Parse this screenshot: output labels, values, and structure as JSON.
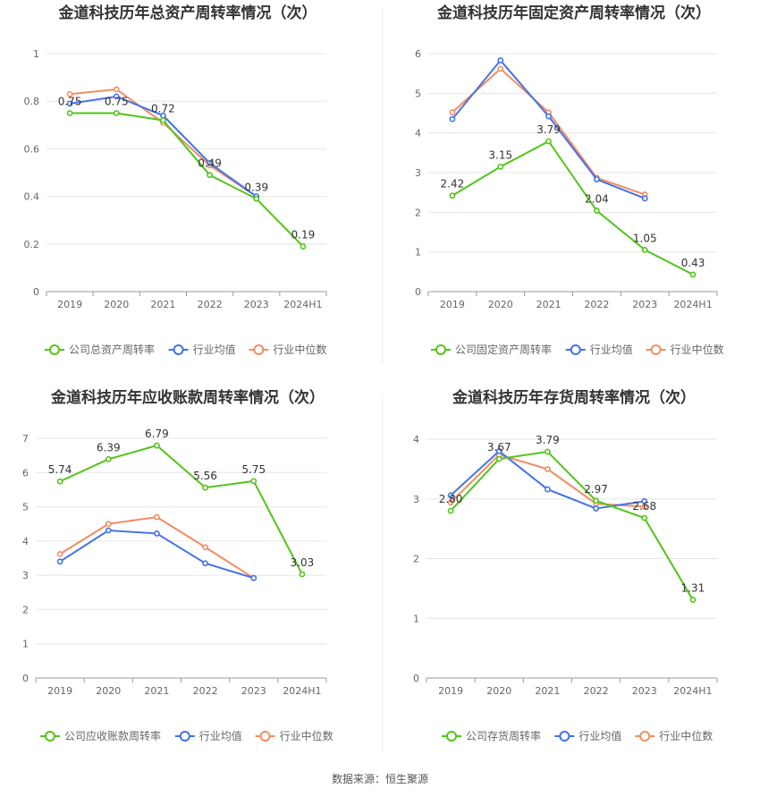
{
  "footer": {
    "source": "数据来源：恒生聚源"
  },
  "colors": {
    "company": "#52c41a",
    "avg": "#4472e8",
    "median": "#f28c62",
    "grid": "#e6e6e6",
    "axis": "#999999",
    "text": "#666666",
    "title": "#333333"
  },
  "chart_data": [
    {
      "type": "line",
      "title": "金道科技历年总资产周转率情况（次）",
      "categories": [
        "2019",
        "2020",
        "2021",
        "2022",
        "2023",
        "2024H1"
      ],
      "ylim": [
        0,
        1
      ],
      "yticks": [
        "0",
        "0.2",
        "0.4",
        "0.6",
        "0.8",
        "1"
      ],
      "yticks_values": [
        0,
        0.2,
        0.4,
        0.6,
        0.8,
        1
      ],
      "legend_position": "bottom",
      "series": [
        {
          "name": "公司总资产周转率",
          "role": "company",
          "values": [
            0.75,
            0.75,
            0.72,
            0.49,
            0.39,
            0.19
          ],
          "labels": [
            "0.75",
            "0.75",
            "0.72",
            "0.49",
            "0.39",
            "0.19"
          ]
        },
        {
          "name": "行业均值",
          "role": "avg",
          "values": [
            0.79,
            0.82,
            0.74,
            0.54,
            0.4,
            null
          ]
        },
        {
          "name": "行业中位数",
          "role": "median",
          "values": [
            0.83,
            0.85,
            0.71,
            0.53,
            0.4,
            null
          ]
        }
      ]
    },
    {
      "type": "line",
      "title": "金道科技历年固定资产周转率情况（次）",
      "categories": [
        "2019",
        "2020",
        "2021",
        "2022",
        "2023",
        "2024H1"
      ],
      "ylim": [
        0,
        6
      ],
      "yticks": [
        "0",
        "1",
        "2",
        "3",
        "4",
        "5",
        "6"
      ],
      "yticks_values": [
        0,
        1,
        2,
        3,
        4,
        5,
        6
      ],
      "legend_position": "bottom",
      "series": [
        {
          "name": "公司固定资产周转率",
          "role": "company",
          "values": [
            2.42,
            3.15,
            3.79,
            2.04,
            1.05,
            0.43
          ],
          "labels": [
            "2.42",
            "3.15",
            "3.79",
            "2.04",
            "1.05",
            "0.43"
          ]
        },
        {
          "name": "行业均值",
          "role": "avg",
          "values": [
            4.35,
            5.83,
            4.42,
            2.83,
            2.35,
            null
          ]
        },
        {
          "name": "行业中位数",
          "role": "median",
          "values": [
            4.52,
            5.62,
            4.52,
            2.87,
            2.45,
            null
          ]
        }
      ]
    },
    {
      "type": "line",
      "title": "金道科技历年应收账款周转率情况（次）",
      "categories": [
        "2019",
        "2020",
        "2021",
        "2022",
        "2023",
        "2024H1"
      ],
      "ylim": [
        0,
        7
      ],
      "yticks": [
        "0",
        "1",
        "2",
        "3",
        "4",
        "5",
        "6",
        "7"
      ],
      "yticks_values": [
        0,
        1,
        2,
        3,
        4,
        5,
        6,
        7
      ],
      "legend_position": "bottom",
      "series": [
        {
          "name": "公司应收账款周转率",
          "role": "company",
          "values": [
            5.74,
            6.39,
            6.79,
            5.56,
            5.75,
            3.03
          ],
          "labels": [
            "5.74",
            "6.39",
            "6.79",
            "5.56",
            "5.75",
            "3.03"
          ]
        },
        {
          "name": "行业均值",
          "role": "avg",
          "values": [
            3.4,
            4.31,
            4.22,
            3.35,
            2.92,
            null
          ]
        },
        {
          "name": "行业中位数",
          "role": "median",
          "values": [
            3.62,
            4.5,
            4.7,
            3.82,
            2.92,
            null
          ]
        }
      ]
    },
    {
      "type": "line",
      "title": "金道科技历年存货周转率情况（次）",
      "categories": [
        "2019",
        "2020",
        "2021",
        "2022",
        "2023",
        "2024H1"
      ],
      "ylim": [
        0,
        4
      ],
      "yticks": [
        "0",
        "1",
        "2",
        "3",
        "4"
      ],
      "yticks_values": [
        0,
        1,
        2,
        3,
        4
      ],
      "legend_position": "bottom",
      "series": [
        {
          "name": "公司存货周转率",
          "role": "company",
          "values": [
            2.8,
            3.67,
            3.79,
            2.97,
            2.68,
            1.31
          ],
          "labels": [
            "2.80",
            "3.67",
            "3.79",
            "2.97",
            "2.68",
            "1.31"
          ]
        },
        {
          "name": "行业均值",
          "role": "avg",
          "values": [
            3.06,
            3.8,
            3.16,
            2.84,
            2.96,
            null
          ]
        },
        {
          "name": "行业中位数",
          "role": "median",
          "values": [
            2.94,
            3.74,
            3.5,
            2.92,
            2.87,
            null
          ]
        }
      ]
    }
  ]
}
